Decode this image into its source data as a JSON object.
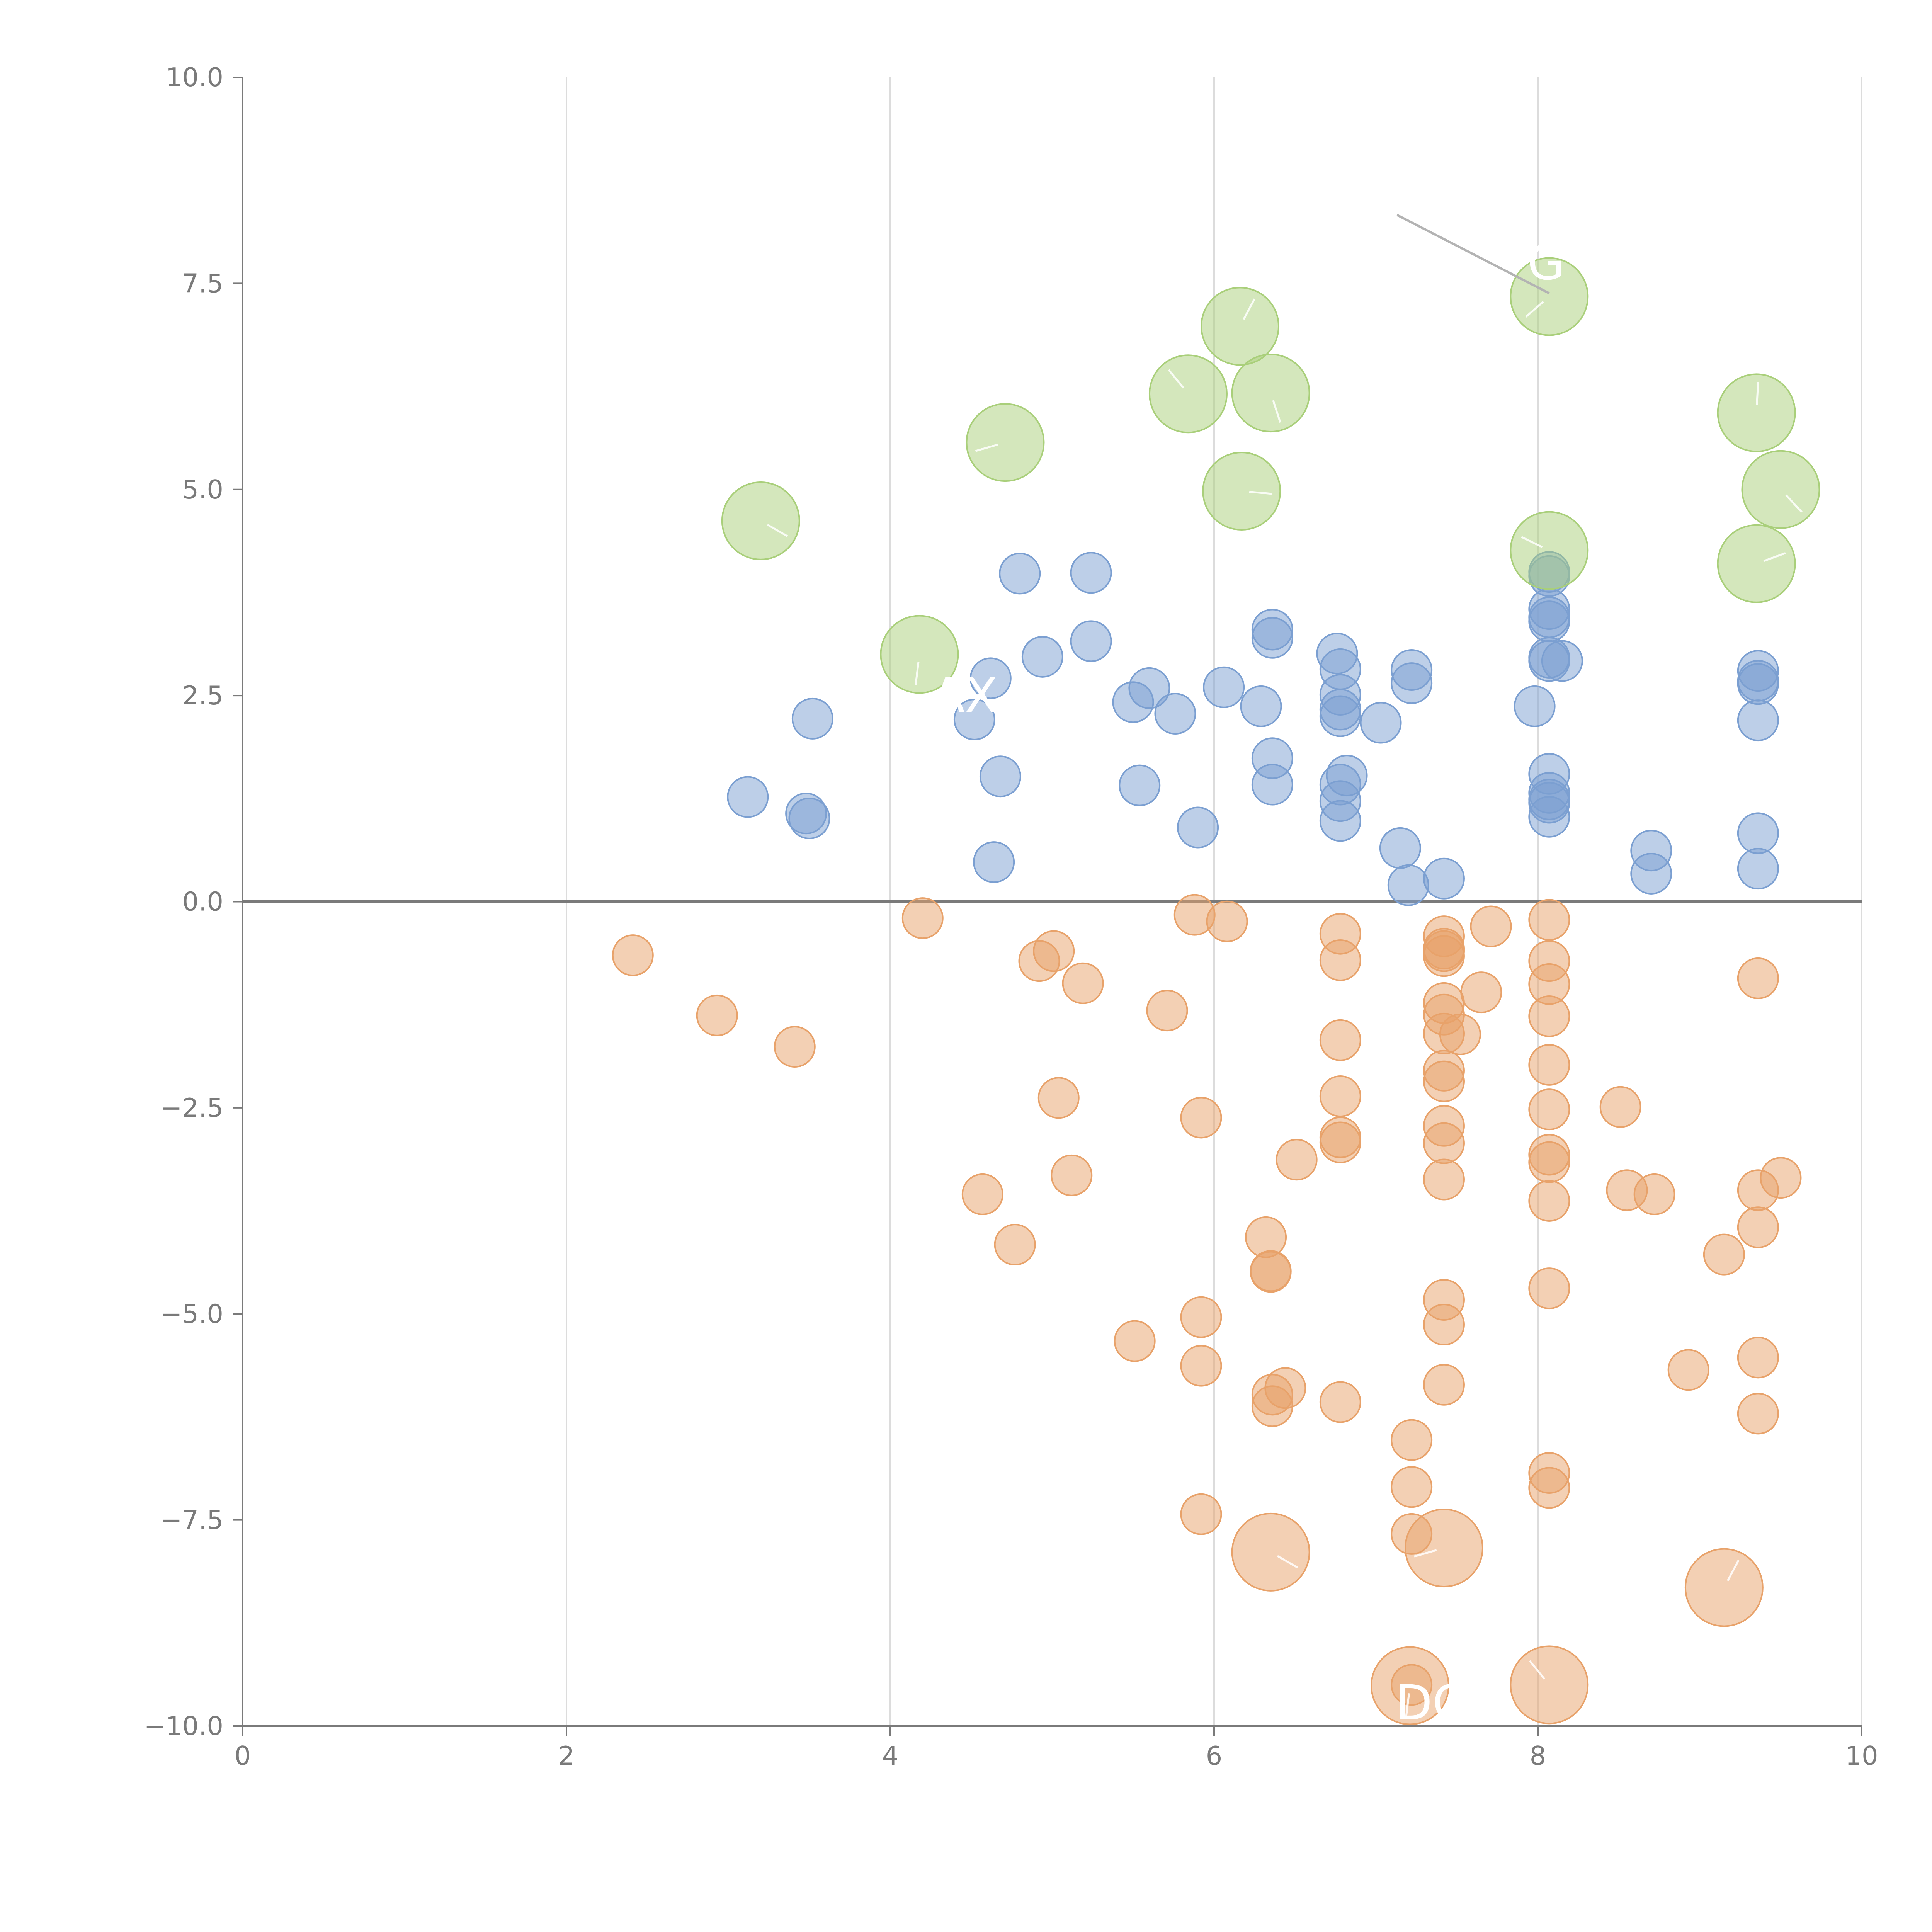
{
  "chart_data": {
    "type": "scatter",
    "title": "",
    "xlabel": "",
    "ylabel": "",
    "xlim": [
      0,
      10
    ],
    "ylim": [
      -10,
      10
    ],
    "xticks": [
      0,
      2,
      4,
      6,
      8,
      10
    ],
    "yticks": [
      10,
      7.5,
      5,
      2.5,
      0,
      -2.5,
      -5,
      -7.5,
      -10
    ],
    "xtick_labels": [
      "0",
      "2",
      "4",
      "6",
      "8",
      "10"
    ],
    "ytick_labels": [
      "10.0",
      "7.5",
      "5.0",
      "2.5",
      "0.0",
      "−2.5",
      "−5.0",
      "−7.5",
      "−10.0"
    ],
    "grid": "vertical",
    "reference_line_y": 0,
    "colors": {
      "blue": "#7b9fd1",
      "orange": "#e8a26a",
      "green": "#a9cf7a"
    },
    "series": [
      {
        "name": "blue",
        "color": "#7b9fd1",
        "radius": "small",
        "points": [
          [
            3.12,
            1.27
          ],
          [
            3.48,
            1.07
          ],
          [
            3.5,
            1.01
          ],
          [
            3.52,
            2.22
          ],
          [
            4.52,
            2.21
          ],
          [
            4.62,
            2.71
          ],
          [
            4.64,
            0.48
          ],
          [
            4.68,
            1.52
          ],
          [
            4.8,
            3.98
          ],
          [
            4.94,
            2.97
          ],
          [
            5.24,
            3.99
          ],
          [
            5.24,
            3.16
          ],
          [
            5.5,
            2.42
          ],
          [
            5.54,
            1.41
          ],
          [
            5.6,
            2.59
          ],
          [
            5.76,
            2.28
          ],
          [
            5.9,
            0.9
          ],
          [
            6.06,
            2.6
          ],
          [
            6.29,
            2.37
          ],
          [
            6.36,
            3.3
          ],
          [
            6.36,
            3.2
          ],
          [
            6.36,
            1.74
          ],
          [
            6.36,
            1.42
          ],
          [
            6.76,
            3.01
          ],
          [
            6.78,
            2.82
          ],
          [
            6.78,
            2.51
          ],
          [
            6.78,
            2.33
          ],
          [
            6.78,
            2.25
          ],
          [
            6.78,
            1.42
          ],
          [
            6.78,
            1.22
          ],
          [
            6.78,
            0.98
          ],
          [
            6.82,
            1.53
          ],
          [
            7.03,
            2.17
          ],
          [
            7.15,
            0.65
          ],
          [
            7.2,
            0.2
          ],
          [
            7.22,
            2.81
          ],
          [
            7.22,
            2.65
          ],
          [
            7.42,
            0.28
          ],
          [
            7.98,
            2.37
          ],
          [
            8.07,
            4.0
          ],
          [
            8.07,
            3.95
          ],
          [
            8.07,
            3.55
          ],
          [
            8.07,
            3.45
          ],
          [
            8.07,
            3.4
          ],
          [
            8.07,
            2.96
          ],
          [
            8.07,
            2.92
          ],
          [
            8.07,
            1.55
          ],
          [
            8.07,
            1.32
          ],
          [
            8.07,
            1.24
          ],
          [
            8.07,
            1.2
          ],
          [
            8.07,
            1.03
          ],
          [
            8.15,
            2.92
          ],
          [
            8.7,
            0.62
          ],
          [
            8.7,
            0.34
          ],
          [
            9.36,
            2.8
          ],
          [
            9.36,
            2.68
          ],
          [
            9.36,
            2.64
          ],
          [
            9.36,
            2.2
          ],
          [
            9.36,
            0.83
          ],
          [
            9.36,
            0.4
          ]
        ]
      },
      {
        "name": "orange",
        "color": "#e8a26a",
        "radius": "small",
        "points": [
          [
            2.41,
            -0.65
          ],
          [
            2.93,
            -1.38
          ],
          [
            3.41,
            -1.76
          ],
          [
            4.2,
            -0.2
          ],
          [
            4.57,
            -3.55
          ],
          [
            4.77,
            -4.16
          ],
          [
            4.92,
            -0.72
          ],
          [
            5.01,
            -0.6
          ],
          [
            5.04,
            -2.38
          ],
          [
            5.12,
            -3.32
          ],
          [
            5.19,
            -0.99
          ],
          [
            5.51,
            -5.33
          ],
          [
            5.71,
            -1.32
          ],
          [
            5.88,
            -0.16
          ],
          [
            5.92,
            -2.62
          ],
          [
            5.92,
            -5.04
          ],
          [
            5.92,
            -5.63
          ],
          [
            5.92,
            -7.43
          ],
          [
            6.08,
            -0.24
          ],
          [
            6.32,
            -4.07
          ],
          [
            6.35,
            -4.49
          ],
          [
            6.35,
            -4.48
          ],
          [
            6.36,
            -5.98
          ],
          [
            6.36,
            -6.12
          ],
          [
            6.44,
            -5.9
          ],
          [
            6.51,
            -3.13
          ],
          [
            6.78,
            -0.39
          ],
          [
            6.78,
            -0.71
          ],
          [
            6.78,
            -1.68
          ],
          [
            6.78,
            -2.36
          ],
          [
            6.78,
            -2.86
          ],
          [
            6.78,
            -2.92
          ],
          [
            6.78,
            -6.07
          ],
          [
            7.22,
            -6.53
          ],
          [
            7.22,
            -7.1
          ],
          [
            7.22,
            -7.67
          ],
          [
            7.22,
            -9.5
          ],
          [
            7.42,
            -0.42
          ],
          [
            7.42,
            -0.57
          ],
          [
            7.42,
            -0.6
          ],
          [
            7.42,
            -0.66
          ],
          [
            7.42,
            -1.23
          ],
          [
            7.42,
            -1.37
          ],
          [
            7.42,
            -1.6
          ],
          [
            7.42,
            -2.05
          ],
          [
            7.42,
            -2.18
          ],
          [
            7.42,
            -2.72
          ],
          [
            7.42,
            -2.93
          ],
          [
            7.42,
            -3.37
          ],
          [
            7.42,
            -4.83
          ],
          [
            7.42,
            -5.13
          ],
          [
            7.42,
            -5.86
          ],
          [
            7.52,
            -1.61
          ],
          [
            7.65,
            -1.1
          ],
          [
            7.71,
            -0.3
          ],
          [
            8.07,
            -0.22
          ],
          [
            8.07,
            -0.72
          ],
          [
            8.07,
            -1.0
          ],
          [
            8.07,
            -1.39
          ],
          [
            8.07,
            -1.98
          ],
          [
            8.07,
            -2.52
          ],
          [
            8.07,
            -3.07
          ],
          [
            8.07,
            -3.16
          ],
          [
            8.07,
            -3.63
          ],
          [
            8.07,
            -4.69
          ],
          [
            8.07,
            -6.93
          ],
          [
            8.07,
            -7.11
          ],
          [
            8.51,
            -2.49
          ],
          [
            8.55,
            -3.5
          ],
          [
            8.72,
            -3.55
          ],
          [
            8.93,
            -5.68
          ],
          [
            9.15,
            -4.28
          ],
          [
            9.36,
            -0.93
          ],
          [
            9.36,
            -3.5
          ],
          [
            9.36,
            -3.95
          ],
          [
            9.36,
            -5.53
          ],
          [
            9.36,
            -6.21
          ],
          [
            9.5,
            -3.35
          ]
        ]
      },
      {
        "name": "green",
        "color": "#a9cf7a",
        "radius": "large",
        "points": [
          [
            3.2,
            4.62
          ],
          [
            4.18,
            3.0
          ],
          [
            4.71,
            5.57
          ],
          [
            5.84,
            6.16
          ],
          [
            6.16,
            6.98
          ],
          [
            6.17,
            4.98
          ],
          [
            6.35,
            6.17
          ],
          [
            8.07,
            7.34
          ],
          [
            8.07,
            4.26
          ],
          [
            9.35,
            5.93
          ],
          [
            9.35,
            4.1
          ],
          [
            9.5,
            5.0
          ]
        ]
      },
      {
        "name": "orange-large",
        "color": "#e8a26a",
        "radius": "large",
        "points": [
          [
            6.35,
            -7.89
          ],
          [
            7.21,
            -9.51
          ],
          [
            7.42,
            -7.84
          ],
          [
            8.07,
            -9.5
          ],
          [
            9.15,
            -8.32
          ]
        ]
      }
    ],
    "annotations": [
      {
        "label": "G",
        "x": 8.05,
        "y": 7.55
      },
      {
        "label": "AX",
        "x": 4.46,
        "y": 2.3
      },
      {
        "label": "DCH",
        "x": 7.45,
        "y": -9.92
      }
    ],
    "annotation_leader": {
      "x1": 7.13,
      "y1": 8.33,
      "x2": 8.07,
      "y2": 7.38
    }
  }
}
